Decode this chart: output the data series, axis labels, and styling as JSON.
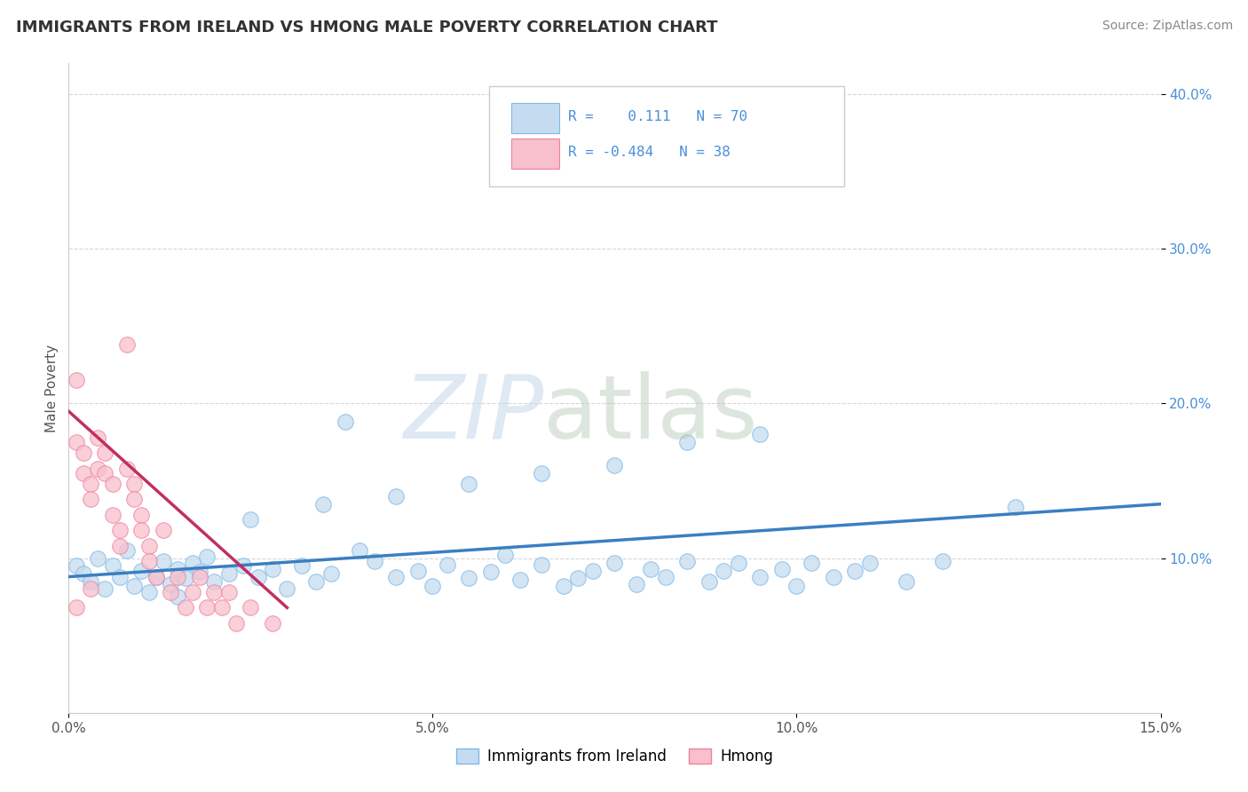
{
  "title": "IMMIGRANTS FROM IRELAND VS HMONG MALE POVERTY CORRELATION CHART",
  "source": "Source: ZipAtlas.com",
  "ylabel": "Male Poverty",
  "legend_labels": [
    "Immigrants from Ireland",
    "Hmong"
  ],
  "r_ireland": 0.111,
  "n_ireland": 70,
  "r_hmong": -0.484,
  "n_hmong": 38,
  "xlim": [
    0.0,
    0.15
  ],
  "ylim": [
    0.0,
    0.42
  ],
  "xticks": [
    0.0,
    0.05,
    0.1,
    0.15
  ],
  "xtick_labels": [
    "0.0%",
    "5.0%",
    "10.0%",
    "15.0%"
  ],
  "yticks": [
    0.1,
    0.2,
    0.3,
    0.4
  ],
  "ytick_labels": [
    "10.0%",
    "20.0%",
    "30.0%",
    "40.0%"
  ],
  "color_ireland_fill": "#c5dcf0",
  "color_ireland_edge": "#7eb8e8",
  "color_hmong_fill": "#f7c0cc",
  "color_hmong_edge": "#f080a0",
  "line_ireland": "#3a7fc1",
  "line_hmong": "#c03060",
  "background_color": "#ffffff",
  "grid_color": "#cccccc",
  "ireland_scatter_x": [
    0.001,
    0.002,
    0.003,
    0.004,
    0.005,
    0.006,
    0.007,
    0.008,
    0.009,
    0.01,
    0.011,
    0.012,
    0.013,
    0.014,
    0.015,
    0.016,
    0.017,
    0.018,
    0.019,
    0.02,
    0.022,
    0.024,
    0.026,
    0.028,
    0.03,
    0.032,
    0.034,
    0.036,
    0.038,
    0.04,
    0.042,
    0.045,
    0.048,
    0.05,
    0.052,
    0.055,
    0.058,
    0.06,
    0.062,
    0.065,
    0.068,
    0.07,
    0.072,
    0.075,
    0.078,
    0.08,
    0.082,
    0.085,
    0.088,
    0.09,
    0.092,
    0.095,
    0.098,
    0.1,
    0.102,
    0.105,
    0.108,
    0.11,
    0.115,
    0.12,
    0.095,
    0.085,
    0.075,
    0.065,
    0.055,
    0.045,
    0.035,
    0.025,
    0.015,
    0.13
  ],
  "ireland_scatter_y": [
    0.095,
    0.09,
    0.085,
    0.1,
    0.08,
    0.095,
    0.088,
    0.105,
    0.082,
    0.092,
    0.078,
    0.088,
    0.098,
    0.083,
    0.093,
    0.087,
    0.097,
    0.091,
    0.101,
    0.085,
    0.09,
    0.095,
    0.088,
    0.093,
    0.08,
    0.095,
    0.085,
    0.09,
    0.188,
    0.105,
    0.098,
    0.088,
    0.092,
    0.082,
    0.096,
    0.087,
    0.091,
    0.102,
    0.086,
    0.096,
    0.082,
    0.087,
    0.092,
    0.097,
    0.083,
    0.093,
    0.088,
    0.098,
    0.085,
    0.092,
    0.097,
    0.088,
    0.093,
    0.082,
    0.097,
    0.088,
    0.092,
    0.097,
    0.085,
    0.098,
    0.18,
    0.175,
    0.16,
    0.155,
    0.148,
    0.14,
    0.135,
    0.125,
    0.075,
    0.133
  ],
  "hmong_scatter_x": [
    0.001,
    0.001,
    0.002,
    0.002,
    0.003,
    0.003,
    0.004,
    0.004,
    0.005,
    0.005,
    0.006,
    0.006,
    0.007,
    0.007,
    0.008,
    0.008,
    0.009,
    0.009,
    0.01,
    0.01,
    0.011,
    0.011,
    0.012,
    0.013,
    0.014,
    0.015,
    0.016,
    0.017,
    0.018,
    0.019,
    0.02,
    0.021,
    0.022,
    0.023,
    0.025,
    0.028,
    0.001,
    0.003
  ],
  "hmong_scatter_y": [
    0.215,
    0.175,
    0.168,
    0.155,
    0.148,
    0.138,
    0.178,
    0.158,
    0.168,
    0.155,
    0.148,
    0.128,
    0.118,
    0.108,
    0.238,
    0.158,
    0.148,
    0.138,
    0.128,
    0.118,
    0.108,
    0.098,
    0.088,
    0.118,
    0.078,
    0.088,
    0.068,
    0.078,
    0.088,
    0.068,
    0.078,
    0.068,
    0.078,
    0.058,
    0.068,
    0.058,
    0.068,
    0.08
  ],
  "ireland_trendline_x": [
    0.0,
    0.15
  ],
  "ireland_trendline_y": [
    0.088,
    0.135
  ],
  "hmong_trendline_x": [
    0.0,
    0.03
  ],
  "hmong_trendline_y": [
    0.195,
    0.068
  ]
}
